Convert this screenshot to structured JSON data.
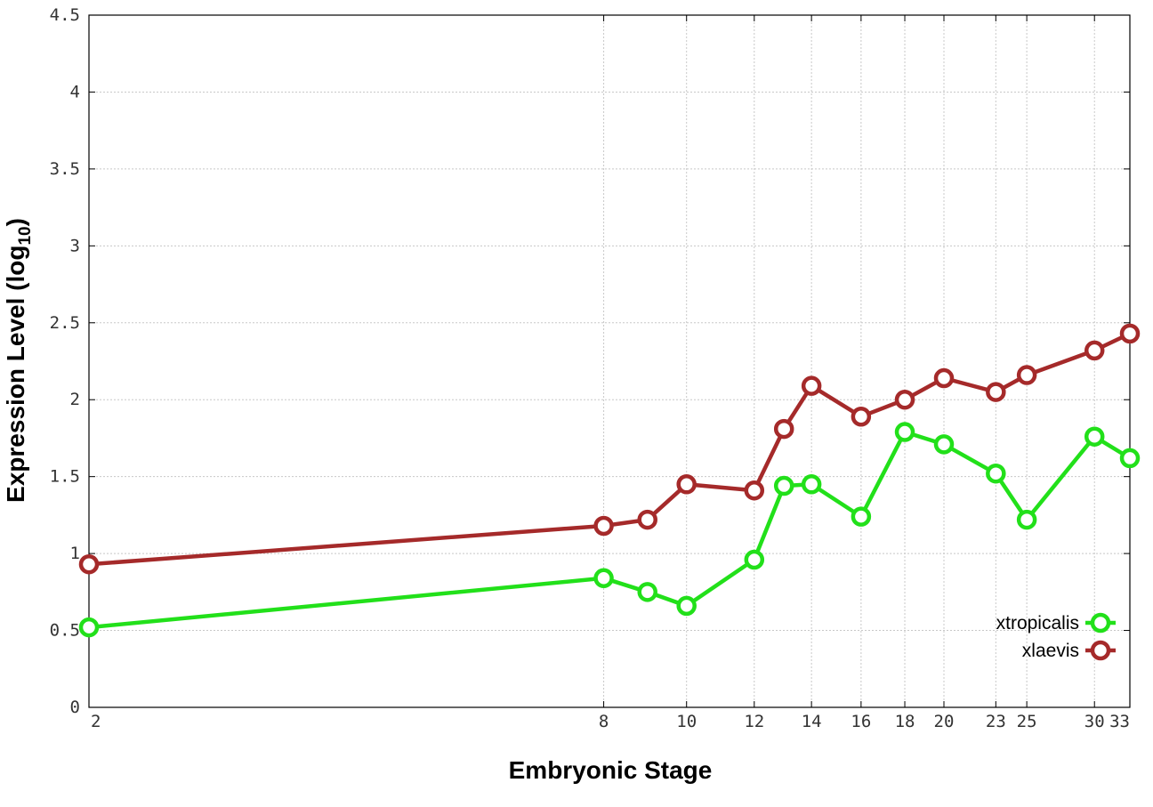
{
  "chart_data": {
    "type": "line",
    "xlabel": "Embryonic Stage",
    "ylabel": "Expression Level (log",
    "ylabel_sub": "10",
    "ylabel_close": ")",
    "xlim": [
      2,
      33
    ],
    "ylim": [
      0,
      4.5
    ],
    "x_scale": "log",
    "x_ticks": [
      2,
      8,
      10,
      12,
      14,
      16,
      18,
      20,
      23,
      25,
      30,
      33
    ],
    "x_tick_labels": [
      "2",
      "8",
      "10",
      "12",
      "14",
      "16",
      "18",
      "20",
      "23",
      "25",
      "30",
      "33"
    ],
    "y_ticks": [
      0,
      0.5,
      1,
      1.5,
      2,
      2.5,
      3,
      3.5,
      4,
      4.5
    ],
    "y_tick_labels": [
      "0",
      "0.5",
      "1",
      "1.5",
      "2",
      "2.5",
      "3",
      "3.5",
      "4",
      "4.5"
    ],
    "grid": true,
    "legend_position": "bottom-right",
    "x": [
      2,
      8,
      9,
      10,
      12,
      13,
      14,
      16,
      18,
      20,
      23,
      25,
      30,
      33
    ],
    "series": [
      {
        "name": "xtropicalis",
        "color": "#22e01a",
        "values": [
          0.52,
          0.84,
          0.75,
          0.66,
          0.96,
          1.44,
          1.45,
          1.24,
          1.79,
          1.71,
          1.52,
          1.22,
          1.76,
          1.62
        ]
      },
      {
        "name": "xlaevis",
        "color": "#a52a2a",
        "values": [
          0.93,
          1.18,
          1.22,
          1.45,
          1.41,
          1.81,
          2.09,
          1.89,
          2.0,
          2.14,
          2.05,
          2.16,
          2.32,
          2.43
        ]
      }
    ]
  }
}
